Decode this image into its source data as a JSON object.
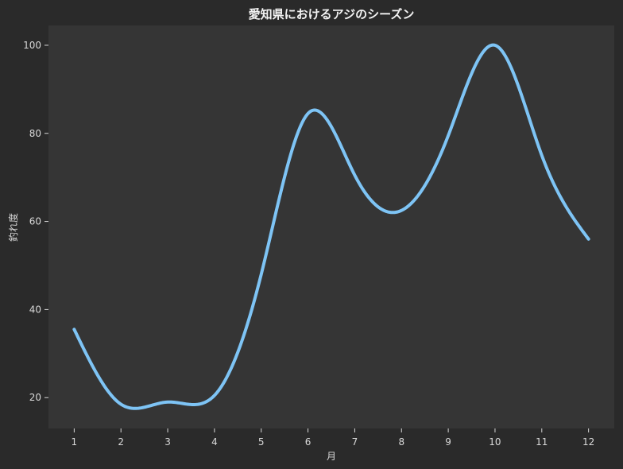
{
  "chart_data": {
    "type": "line",
    "title": "愛知県におけるアジのシーズン",
    "xlabel": "月",
    "ylabel": "釣れ度",
    "x": [
      1,
      2,
      3,
      4,
      5,
      6,
      7,
      8,
      9,
      10,
      11,
      12
    ],
    "x_tick_labels": [
      "1",
      "2",
      "3",
      "4",
      "5",
      "6",
      "7",
      "8",
      "9",
      "10",
      "11",
      "12"
    ],
    "y_tick_values": [
      20,
      40,
      60,
      80,
      100
    ],
    "y_tick_labels": [
      "20",
      "40",
      "60",
      "80",
      "100"
    ],
    "xlim": [
      0.45,
      12.55
    ],
    "ylim": [
      13,
      104.5
    ],
    "grid": false,
    "legend": "none",
    "series": [
      {
        "values": [
          35.5,
          18.5,
          19.0,
          20.5,
          48.0,
          84.5,
          70.5,
          62.5,
          79.5,
          100.0,
          75.0,
          56.0
        ],
        "smooth": true,
        "color": "#7ec4f5"
      }
    ],
    "colors": {
      "background": "#2a2a2a",
      "plot_background": "#353535",
      "text": "#d9d9d9",
      "title": "#f2f2f2",
      "line": "#7ec4f5"
    }
  }
}
